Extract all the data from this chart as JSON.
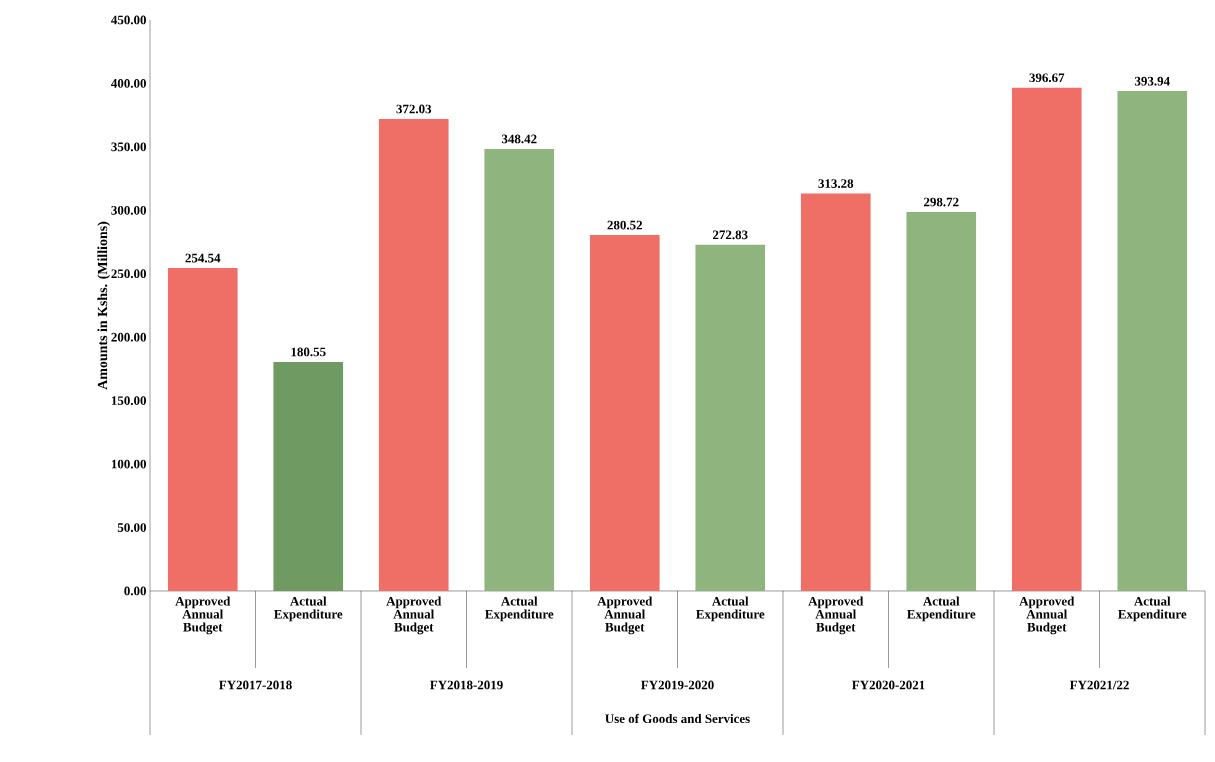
{
  "chart_data": {
    "type": "bar",
    "ylabel": "Amounts in Kshs. (Millions)",
    "categories": [
      "Approved Annual Budget",
      "Actual Expenditure",
      "Approved Annual Budget",
      "Actual Expenditure",
      "Approved Annual Budget",
      "Actual Expenditure",
      "Approved Annual Budget",
      "Actual Expenditure",
      "Approved Annual Budget",
      "Actual Expenditure"
    ],
    "values": [
      254.54,
      180.55,
      372.03,
      348.42,
      280.52,
      272.83,
      313.28,
      298.72,
      396.67,
      393.94
    ],
    "colors": [
      "#ef6f66",
      "#6f9a62",
      "#ef6f66",
      "#8fb47e",
      "#ef6f66",
      "#8fb47e",
      "#ef6f66",
      "#8fb47e",
      "#ef6f66",
      "#8fb47e"
    ],
    "ylim": [
      0,
      450
    ],
    "yticks": [
      {
        "value": 0,
        "label": "0.00"
      },
      {
        "value": 50,
        "label": "50.00"
      },
      {
        "value": 100,
        "label": "100.00"
      },
      {
        "value": 150,
        "label": "150.00"
      },
      {
        "value": 200,
        "label": "200.00"
      },
      {
        "value": 250,
        "label": "250.00"
      },
      {
        "value": 300,
        "label": "300.00"
      },
      {
        "value": 350,
        "label": "350.00"
      },
      {
        "value": 400,
        "label": "400.00"
      },
      {
        "value": 450,
        "label": "450.00"
      }
    ],
    "annotations": [
      "FY2017-2018",
      "FY2018-2019",
      "FY2019-2020",
      "FY2020-2021",
      "FY2021/22",
      "Use of Goods and Services"
    ],
    "data_labels": true,
    "grid": false
  }
}
